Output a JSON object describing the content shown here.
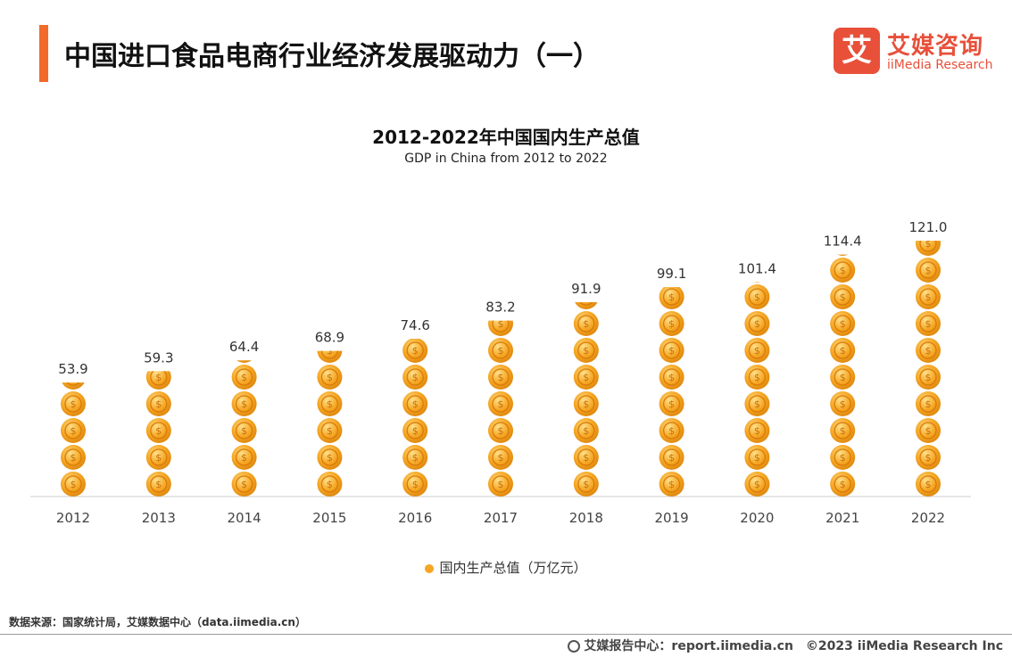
{
  "header": {
    "title": "中国进口食品电商行业经济发展驱动力（一）"
  },
  "logo": {
    "mark": "艾",
    "name_cn": "艾媒咨询",
    "name_en": "iiMedia Research"
  },
  "chart_data": {
    "type": "bar",
    "title": "2012-2022年中国国内生产总值",
    "subtitle": "GDP in China from 2012 to 2022",
    "categories": [
      "2012",
      "2013",
      "2014",
      "2015",
      "2016",
      "2017",
      "2018",
      "2019",
      "2020",
      "2021",
      "2022"
    ],
    "series": [
      {
        "name": "国内生产总值（万亿元）",
        "values": [
          53.9,
          59.3,
          64.4,
          68.9,
          74.6,
          83.2,
          91.9,
          99.1,
          101.4,
          114.4,
          121.0
        ]
      }
    ],
    "value_labels": [
      "53.9",
      "59.3",
      "64.4",
      "68.9",
      "74.6",
      "83.2",
      "91.9",
      "99.1",
      "101.4",
      "114.4",
      "121.0"
    ],
    "ylim": [
      0,
      135
    ],
    "legend_position": "bottom",
    "grid": false,
    "bar_style": "stacked coin icons",
    "colors": {
      "coin": "#f6a623",
      "coin_highlight": "#fcd36a",
      "coin_edge": "#e08a10",
      "axis": "#cccccc"
    }
  },
  "legend": {
    "label": "国内生产总值（万亿元）"
  },
  "footer": {
    "source": "数据来源：国家统计局，艾媒数据中心（data.iimedia.cn）",
    "report_site": "艾媒报告中心：report.iimedia.cn",
    "copyright": "©2023  iiMedia Research  Inc"
  }
}
